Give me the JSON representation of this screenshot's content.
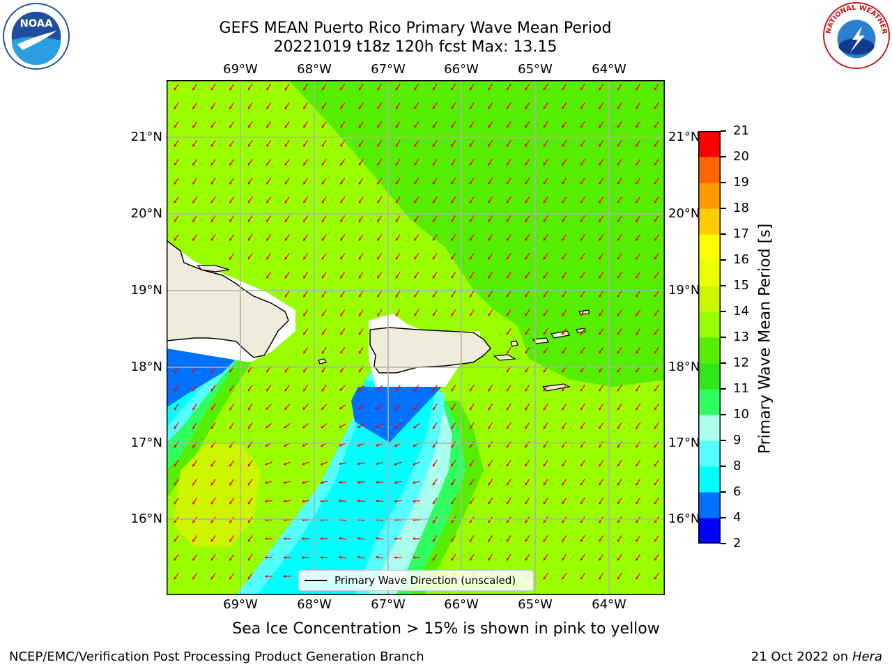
{
  "title_line1": "GEFS MEAN Puerto Rico Primary Wave Mean Period",
  "title_line2": "20221019 t18z 120h fcst   Max: 13.15",
  "lon_labels": [
    "69°W",
    "68°W",
    "67°W",
    "66°W",
    "65°W",
    "64°W"
  ],
  "lat_labels": [
    "21°N",
    "20°N",
    "19°N",
    "18°N",
    "17°N",
    "16°N"
  ],
  "legend_text": "Primary Wave Direction (unscaled)",
  "colorbar": {
    "label": "Primary Wave Mean Period [s]",
    "ticks": [
      "21",
      "20",
      "19",
      "18",
      "17",
      "16",
      "15",
      "14",
      "13",
      "12",
      "11",
      "10",
      "9",
      "8",
      "6",
      "4",
      "2"
    ],
    "colors": [
      "#0000ff",
      "#0070ff",
      "#00ffff",
      "#55ffff",
      "#aaffee",
      "#30ff60",
      "#2ee81c",
      "#55ee00",
      "#99ff00",
      "#ccf500",
      "#eeff00",
      "#ffff00",
      "#ffcc00",
      "#ff9900",
      "#ff6600",
      "#ff3300",
      "#ff0000"
    ]
  },
  "arrow_color": "#ff0000",
  "land_color": "#efecdc",
  "note": "Sea Ice Concentration > 15% is shown in pink to yellow",
  "footer_left": "NCEP/EMC/Verification Post Processing Product Generation Branch",
  "footer_date": "21 Oct 2022 on",
  "footer_host": "Hera",
  "logos": {
    "left": "NOAA",
    "right": "NATIONAL WEATHER SERVICE"
  }
}
